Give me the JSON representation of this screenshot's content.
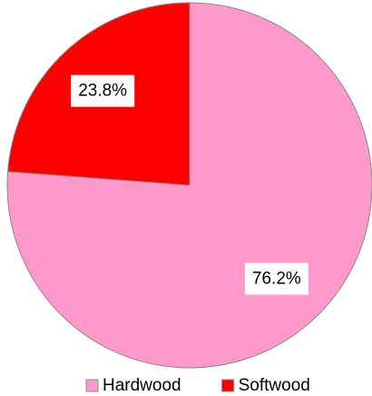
{
  "chart_data": {
    "type": "pie",
    "categories": [
      "Hardwood",
      "Softwood"
    ],
    "values": [
      76.2,
      23.8
    ],
    "value_labels": [
      "76.2%",
      "23.8%"
    ],
    "colors": [
      "#ff99cc",
      "#ff0000"
    ],
    "legend": "bottom"
  }
}
